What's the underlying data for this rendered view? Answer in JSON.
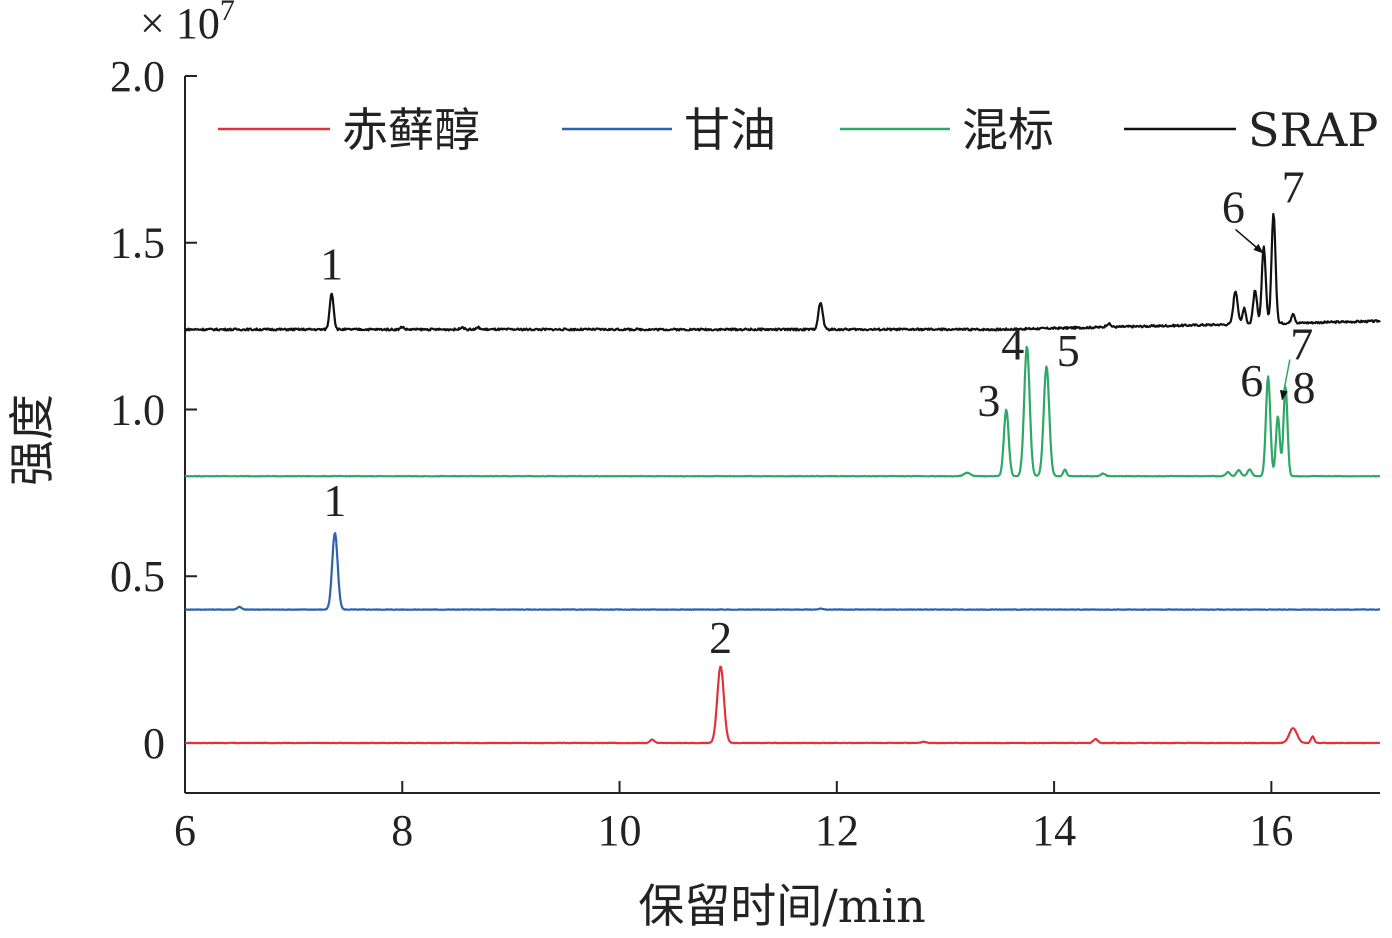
{
  "chart_data": {
    "type": "line",
    "title": "",
    "xlabel": "保留时间/min",
    "ylabel": "强度",
    "scale_label": "× 10",
    "scale_exponent": "7",
    "xlim": [
      6,
      17
    ],
    "ylim": [
      -0.15,
      2.0
    ],
    "x_ticks": [
      6,
      8,
      10,
      12,
      14,
      16
    ],
    "y_ticks": [
      {
        "value": 0,
        "label": "0"
      },
      {
        "value": 0.5,
        "label": "0.5"
      },
      {
        "value": 1.0,
        "label": "1.0"
      },
      {
        "value": 1.5,
        "label": "1.5"
      },
      {
        "value": 2.0,
        "label": "2.0"
      }
    ],
    "legend_position": "top",
    "series": [
      {
        "name": "赤藓醇",
        "color": "#e0323c",
        "baseline": 0,
        "peaks": [
          [
            10.3,
            0.01,
            0.02
          ],
          [
            10.93,
            0.23,
            0.03
          ],
          [
            12.8,
            0.004,
            0.02
          ],
          [
            14.38,
            0.012,
            0.02
          ],
          [
            16.2,
            0.045,
            0.035
          ],
          [
            16.38,
            0.02,
            0.015
          ]
        ],
        "labels": [
          {
            "text": "2",
            "x": 10.93,
            "y": 0.27
          }
        ]
      },
      {
        "name": "甘油",
        "color": "#2c62b0",
        "baseline": 0.4,
        "peaks": [
          [
            6.5,
            0.008,
            0.02
          ],
          [
            7.38,
            0.23,
            0.025
          ],
          [
            11.85,
            0.003,
            0.02
          ]
        ],
        "labels": [
          {
            "text": "1",
            "x": 7.38,
            "y": 0.68
          }
        ]
      },
      {
        "name": "混标",
        "color": "#2da866",
        "baseline": 0.8,
        "peaks": [
          [
            13.2,
            0.01,
            0.03
          ],
          [
            13.56,
            0.2,
            0.022
          ],
          [
            13.75,
            0.39,
            0.025
          ],
          [
            13.93,
            0.33,
            0.025
          ],
          [
            14.1,
            0.02,
            0.015
          ],
          [
            14.45,
            0.008,
            0.02
          ],
          [
            15.6,
            0.012,
            0.02
          ],
          [
            15.7,
            0.018,
            0.02
          ],
          [
            15.8,
            0.02,
            0.02
          ],
          [
            15.97,
            0.3,
            0.02
          ],
          [
            16.06,
            0.18,
            0.018
          ],
          [
            16.13,
            0.27,
            0.018
          ]
        ],
        "labels": [
          {
            "text": "3",
            "x": 13.4,
            "y": 0.98
          },
          {
            "text": "4",
            "x": 13.62,
            "y": 1.15
          },
          {
            "text": "5",
            "x": 14.13,
            "y": 1.13
          },
          {
            "text": "6",
            "x": 15.82,
            "y": 1.04
          },
          {
            "text": "7",
            "x": 16.28,
            "y": 1.15
          },
          {
            "text": "8",
            "x": 16.3,
            "y": 1.02
          }
        ],
        "arrows": [
          {
            "from": [
              16.17,
              1.15
            ],
            "to": [
              16.1,
              1.03
            ]
          }
        ]
      },
      {
        "name": "SRAP",
        "color": "#111111",
        "baseline": 1.24,
        "peaks": [
          [
            7.35,
            0.11,
            0.018
          ],
          [
            8.0,
            0.008,
            0.015
          ],
          [
            8.55,
            0.008,
            0.015
          ],
          [
            8.7,
            0.006,
            0.015
          ],
          [
            11.85,
            0.08,
            0.02
          ],
          [
            14.5,
            0.01,
            0.02
          ],
          [
            15.67,
            0.1,
            0.02
          ],
          [
            15.75,
            0.05,
            0.015
          ],
          [
            15.85,
            0.1,
            0.018
          ],
          [
            15.93,
            0.23,
            0.018
          ],
          [
            16.02,
            0.33,
            0.018
          ],
          [
            16.2,
            0.03,
            0.015
          ]
        ],
        "drift": [
          [
            6,
            0
          ],
          [
            13.5,
            0.0
          ],
          [
            17,
            0.025
          ]
        ],
        "labels": [
          {
            "text": "1",
            "x": 7.35,
            "y": 1.39
          },
          {
            "text": "6",
            "x": 15.65,
            "y": 1.56
          },
          {
            "text": "7",
            "x": 16.2,
            "y": 1.62
          }
        ],
        "arrows": [
          {
            "from": [
              15.67,
              1.54
            ],
            "to": [
              15.92,
              1.47
            ]
          }
        ]
      }
    ]
  }
}
